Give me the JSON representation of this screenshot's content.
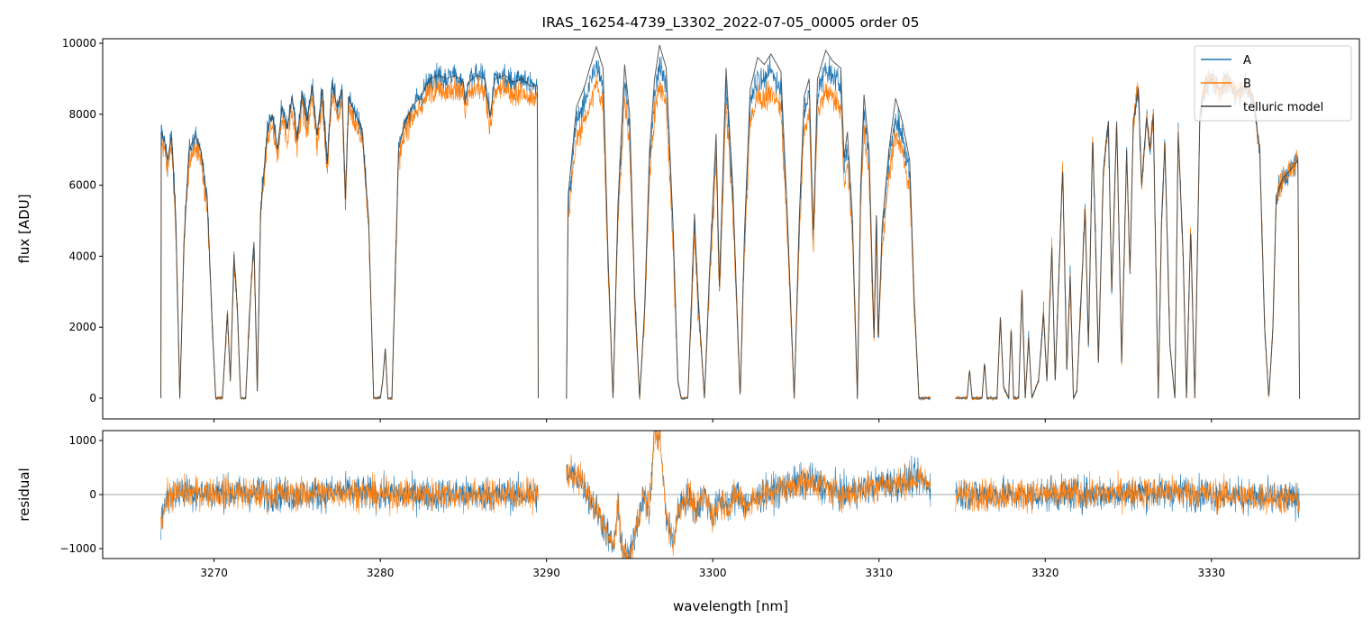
{
  "chart_data": {
    "type": "line",
    "title": "IRAS_16254-4739_L3302_2022-07-05_00005  order 05",
    "xlabel": "wavelength [nm]",
    "xlim": [
      3263.3,
      3338.9
    ],
    "xticks": [
      3270,
      3280,
      3290,
      3300,
      3310,
      3320,
      3330
    ],
    "legend": {
      "placement": "top-right",
      "entries": [
        "A",
        "B",
        "telluric model"
      ]
    },
    "colors": {
      "A": "#1f77b4",
      "B": "#ff7f0e",
      "telluric model": "#404040",
      "zero_line": "#888888"
    },
    "top_panel": {
      "ylabel": "flux [ADU]",
      "ylim": [
        -584,
        10127
      ],
      "yticks": [
        0,
        2000,
        4000,
        6000,
        8000,
        10000
      ],
      "segments": [
        {
          "model": [
            [
              3266.8,
              0
            ],
            [
              3266.82,
              7500
            ],
            [
              3267.0,
              7300
            ],
            [
              3267.2,
              6700
            ],
            [
              3267.45,
              7400
            ],
            [
              3267.7,
              5000
            ],
            [
              3267.94,
              0
            ],
            [
              3268.2,
              4500
            ],
            [
              3268.5,
              7000
            ],
            [
              3268.86,
              7400
            ],
            [
              3269.2,
              7000
            ],
            [
              3269.6,
              5500
            ],
            [
              3269.9,
              2000
            ],
            [
              3270.1,
              0
            ],
            [
              3270.5,
              0
            ],
            [
              3270.8,
              2400
            ],
            [
              3270.98,
              500
            ],
            [
              3271.2,
              4050
            ],
            [
              3271.4,
              2500
            ],
            [
              3271.6,
              0
            ],
            [
              3271.9,
              0
            ],
            [
              3272.2,
              3000
            ],
            [
              3272.4,
              4400
            ],
            [
              3272.6,
              200
            ],
            [
              3272.8,
              5250
            ],
            [
              3273.2,
              7500
            ],
            [
              3273.5,
              8000
            ],
            [
              3273.8,
              7000
            ],
            [
              3274.1,
              8200
            ],
            [
              3274.4,
              7600
            ],
            [
              3274.7,
              8500
            ],
            [
              3275.0,
              7300
            ],
            [
              3275.3,
              8600
            ],
            [
              3275.6,
              7800
            ],
            [
              3275.9,
              8800
            ],
            [
              3276.2,
              7400
            ],
            [
              3276.5,
              8700
            ],
            [
              3276.8,
              6600
            ],
            [
              3277.1,
              8900
            ],
            [
              3277.4,
              8200
            ],
            [
              3277.7,
              8700
            ],
            [
              3277.9,
              5600
            ],
            [
              3278.1,
              8500
            ],
            [
              3278.5,
              8000
            ],
            [
              3278.9,
              7600
            ],
            [
              3279.3,
              5000
            ],
            [
              3279.6,
              0
            ],
            [
              3280.0,
              0
            ],
            [
              3280.15,
              500
            ],
            [
              3280.3,
              1400
            ],
            [
              3280.45,
              0
            ],
            [
              3280.7,
              0
            ],
            [
              3280.9,
              3500
            ],
            [
              3281.1,
              7000
            ],
            [
              3281.5,
              7800
            ],
            [
              3281.9,
              8200
            ],
            [
              3282.4,
              8500
            ],
            [
              3283.0,
              9000
            ],
            [
              3283.5,
              9100
            ],
            [
              3284.0,
              9000
            ],
            [
              3284.5,
              9100
            ],
            [
              3285.0,
              8900
            ],
            [
              3285.1,
              8300
            ],
            [
              3285.3,
              8900
            ],
            [
              3285.8,
              9100
            ],
            [
              3286.3,
              9000
            ],
            [
              3286.6,
              7900
            ],
            [
              3286.9,
              9000
            ],
            [
              3287.5,
              9100
            ],
            [
              3288.0,
              8900
            ],
            [
              3288.5,
              9000
            ],
            [
              3289.0,
              8800
            ],
            [
              3289.45,
              8800
            ],
            [
              3289.5,
              0
            ]
          ],
          "A_scale": 1.0,
          "B_scale": 0.96
        },
        {
          "model": [
            [
              3291.2,
              0
            ],
            [
              3291.3,
              5700
            ],
            [
              3291.8,
              8200
            ],
            [
              3292.3,
              8800
            ],
            [
              3292.6,
              9300
            ],
            [
              3293.0,
              9900
            ],
            [
              3293.4,
              9300
            ],
            [
              3293.7,
              4000
            ],
            [
              3294.0,
              0
            ],
            [
              3294.3,
              5500
            ],
            [
              3294.7,
              9400
            ],
            [
              3295.0,
              8000
            ],
            [
              3295.3,
              3000
            ],
            [
              3295.6,
              0
            ],
            [
              3295.9,
              2500
            ],
            [
              3296.2,
              7000
            ],
            [
              3296.5,
              9000
            ],
            [
              3296.8,
              9950
            ],
            [
              3297.2,
              9300
            ],
            [
              3297.6,
              5000
            ],
            [
              3297.9,
              500
            ],
            [
              3298.1,
              0
            ],
            [
              3298.5,
              0
            ],
            [
              3298.7,
              2500
            ],
            [
              3298.9,
              5200
            ],
            [
              3299.1,
              3000
            ],
            [
              3299.5,
              0
            ],
            [
              3299.8,
              3500
            ],
            [
              3300.2,
              7450
            ],
            [
              3300.4,
              3150
            ],
            [
              3300.8,
              9300
            ],
            [
              3301.2,
              6000
            ],
            [
              3301.65,
              0
            ],
            [
              3301.9,
              4500
            ],
            [
              3302.25,
              8700
            ],
            [
              3302.7,
              9600
            ],
            [
              3303.1,
              9400
            ],
            [
              3303.5,
              9700
            ],
            [
              3304.1,
              9200
            ],
            [
              3304.5,
              5000
            ],
            [
              3304.9,
              0
            ],
            [
              3305.2,
              5000
            ],
            [
              3305.5,
              8500
            ],
            [
              3305.8,
              9000
            ],
            [
              3306.05,
              4570
            ],
            [
              3306.3,
              9000
            ],
            [
              3306.8,
              9800
            ],
            [
              3307.2,
              9500
            ],
            [
              3307.7,
              9300
            ],
            [
              3307.9,
              6780
            ],
            [
              3308.1,
              7500
            ],
            [
              3308.4,
              5100
            ],
            [
              3308.7,
              0
            ],
            [
              3308.9,
              6000
            ],
            [
              3309.1,
              8550
            ],
            [
              3309.4,
              7000
            ],
            [
              3309.7,
              1700
            ],
            [
              3309.85,
              5400
            ],
            [
              3309.95,
              1600
            ],
            [
              3310.2,
              4900
            ],
            [
              3310.6,
              7000
            ],
            [
              3311.0,
              8450
            ],
            [
              3311.4,
              7800
            ],
            [
              3311.85,
              6700
            ],
            [
              3312.1,
              3000
            ],
            [
              3312.4,
              0
            ],
            [
              3313.1,
              0
            ]
          ],
          "A_scale": 0.95,
          "B_scale": 0.89
        },
        {
          "model": [
            [
              3314.6,
              0
            ],
            [
              3315.3,
              0
            ],
            [
              3315.45,
              800
            ],
            [
              3315.6,
              0
            ],
            [
              3316.2,
              0
            ],
            [
              3316.35,
              1000
            ],
            [
              3316.5,
              0
            ],
            [
              3317.1,
              0
            ],
            [
              3317.3,
              2280
            ],
            [
              3317.5,
              300
            ],
            [
              3317.8,
              0
            ],
            [
              3317.95,
              2000
            ],
            [
              3318.1,
              0
            ],
            [
              3318.4,
              0
            ],
            [
              3318.6,
              3050
            ],
            [
              3318.8,
              0
            ],
            [
              3319.0,
              1700
            ],
            [
              3319.2,
              0
            ],
            [
              3319.6,
              500
            ],
            [
              3319.9,
              2400
            ],
            [
              3320.1,
              500
            ],
            [
              3320.4,
              4240
            ],
            [
              3320.6,
              500
            ],
            [
              3321.05,
              6520
            ],
            [
              3321.3,
              800
            ],
            [
              3321.5,
              3450
            ],
            [
              3321.7,
              0
            ],
            [
              3321.9,
              200
            ],
            [
              3322.4,
              5330
            ],
            [
              3322.6,
              1500
            ],
            [
              3322.85,
              7360
            ],
            [
              3323.0,
              5000
            ],
            [
              3323.2,
              1000
            ],
            [
              3323.5,
              6400
            ],
            [
              3323.8,
              7800
            ],
            [
              3324.0,
              3000
            ],
            [
              3324.3,
              7800
            ],
            [
              3324.6,
              1000
            ],
            [
              3324.9,
              7000
            ],
            [
              3325.1,
              3500
            ],
            [
              3325.3,
              7800
            ],
            [
              3325.6,
              8730
            ],
            [
              3325.8,
              6000
            ],
            [
              3326.1,
              7900
            ],
            [
              3326.3,
              7000
            ],
            [
              3326.5,
              8000
            ],
            [
              3326.8,
              0
            ],
            [
              3327.0,
              5000
            ],
            [
              3327.2,
              7200
            ],
            [
              3327.5,
              1500
            ],
            [
              3327.8,
              0
            ],
            [
              3328.0,
              7500
            ],
            [
              3328.3,
              4000
            ],
            [
              3328.5,
              0
            ],
            [
              3328.75,
              4800
            ],
            [
              3329.0,
              0
            ],
            [
              3329.3,
              7900
            ],
            [
              3329.6,
              8800
            ],
            [
              3330.0,
              9000
            ],
            [
              3330.5,
              8700
            ],
            [
              3331.0,
              8900
            ],
            [
              3331.5,
              8600
            ],
            [
              3332.0,
              8800
            ],
            [
              3332.5,
              8500
            ],
            [
              3332.9,
              7000
            ],
            [
              3333.2,
              2000
            ],
            [
              3333.45,
              0
            ],
            [
              3333.7,
              2000
            ],
            [
              3333.9,
              5700
            ],
            [
              3334.3,
              6200
            ],
            [
              3334.7,
              6400
            ],
            [
              3335.2,
              6700
            ],
            [
              3335.3,
              0
            ]
          ],
          "A_scale": 1.0,
          "B_scale": 1.0
        }
      ],
      "noise_std": {
        "A": 180,
        "B": 170
      }
    },
    "bottom_panel": {
      "ylabel": "residual",
      "ylim": [
        -1183,
        1183
      ],
      "yticks": [
        -1000,
        0,
        1000
      ],
      "segments": [
        [
          [
            3266.8,
            -450
          ],
          [
            3267.2,
            -50
          ],
          [
            3268,
            50
          ],
          [
            3275,
            0
          ],
          [
            3278,
            50
          ],
          [
            3280,
            0
          ],
          [
            3289.5,
            0
          ]
        ],
        [
          [
            3291.2,
            400
          ],
          [
            3292.0,
            300
          ],
          [
            3292.5,
            0
          ],
          [
            3293.0,
            -300
          ],
          [
            3293.5,
            -600
          ],
          [
            3294.0,
            -1000
          ],
          [
            3294.3,
            -300
          ],
          [
            3294.6,
            -1100
          ],
          [
            3295.0,
            -1200
          ],
          [
            3295.4,
            -600
          ],
          [
            3295.8,
            0
          ],
          [
            3296.2,
            -300
          ],
          [
            3296.5,
            1200
          ],
          [
            3296.8,
            1100
          ],
          [
            3297.2,
            -400
          ],
          [
            3297.6,
            -900
          ],
          [
            3298.0,
            -200
          ],
          [
            3298.5,
            0
          ],
          [
            3299.0,
            -300
          ],
          [
            3299.5,
            0
          ],
          [
            3300.0,
            -400
          ],
          [
            3300.5,
            -100
          ],
          [
            3301.0,
            -200
          ],
          [
            3301.5,
            0
          ],
          [
            3302.0,
            -200
          ],
          [
            3303,
            0
          ],
          [
            3304,
            100
          ],
          [
            3305,
            200
          ],
          [
            3306,
            250
          ],
          [
            3307,
            100
          ],
          [
            3308,
            0
          ],
          [
            3309,
            100
          ],
          [
            3310,
            200
          ],
          [
            3311,
            200
          ],
          [
            3312,
            300
          ],
          [
            3313.1,
            200
          ]
        ],
        [
          [
            3314.6,
            0
          ],
          [
            3320,
            0
          ],
          [
            3328,
            50
          ],
          [
            3335.3,
            -100
          ]
        ]
      ],
      "noise_std": {
        "A": 160,
        "B": 150
      }
    }
  }
}
